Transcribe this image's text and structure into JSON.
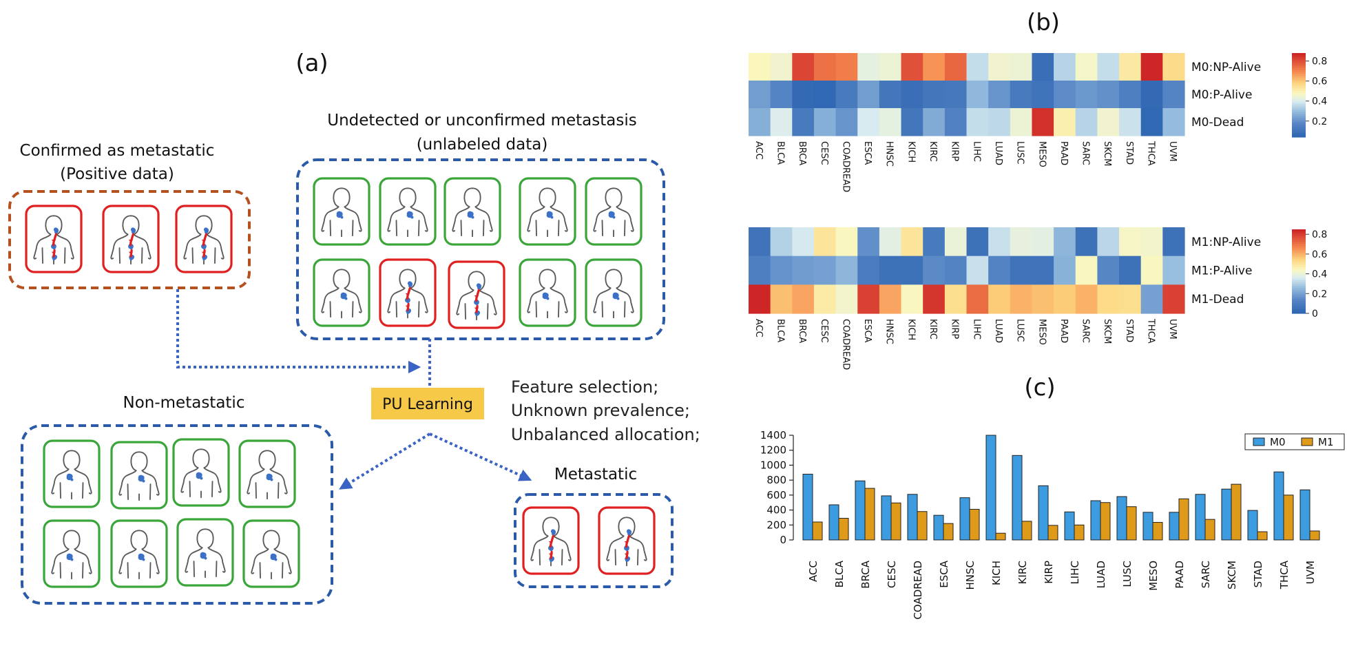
{
  "panel_a": {
    "label": "(a)",
    "positive_group": {
      "title_line1": "Confirmed as metastatic",
      "title_line2": "(Positive data)"
    },
    "unlabeled_group": {
      "title_line1": "Undetected or unconfirmed metastasis",
      "title_line2": "(unlabeled data)"
    },
    "pu_learning_label": "PU Learning",
    "notes": [
      "Feature selection;",
      "Unknown prevalence;",
      "Unbalanced allocation;"
    ],
    "non_metastatic_group": {
      "title": "Non-metastatic"
    },
    "metastatic_group": {
      "title": "Metastatic"
    },
    "colors": {
      "positive_box": "#b5501f",
      "group_box": "#2a5aa8",
      "metastatic_frame": "#e02020",
      "non_metastatic_frame": "#3aa63a",
      "arrow": "#3a63c4",
      "pu_box": "#f7c948"
    },
    "icons": {
      "body": "human-body-icon",
      "tumor": "tumor-spread-icon"
    }
  },
  "panel_b": {
    "label": "(b)"
  },
  "panel_c": {
    "label": "(c)"
  },
  "chart_data": [
    {
      "type": "heatmap",
      "name": "M0",
      "columns": [
        "ACC",
        "BLCA",
        "BRCA",
        "CESC",
        "COADREAD",
        "ESCA",
        "HNSC",
        "KICH",
        "KIRC",
        "KIRP",
        "LIHC",
        "LUAD",
        "LUSC",
        "MESO",
        "PAAD",
        "SARC",
        "SKCM",
        "STAD",
        "THCA",
        "UVM"
      ],
      "rows": [
        "M0:NP-Alive",
        "M0:P-Alive",
        "M0-Dead"
      ],
      "values": [
        [
          0.48,
          0.45,
          0.82,
          0.74,
          0.72,
          0.42,
          0.44,
          0.8,
          0.68,
          0.76,
          0.36,
          0.45,
          0.44,
          0.07,
          0.34,
          0.46,
          0.36,
          0.52,
          0.9,
          0.56
        ],
        [
          0.22,
          0.16,
          0.05,
          0.04,
          0.12,
          0.22,
          0.1,
          0.07,
          0.1,
          0.11,
          0.28,
          0.2,
          0.12,
          0.09,
          0.18,
          0.21,
          0.19,
          0.14,
          0.05,
          0.16
        ],
        [
          0.26,
          0.4,
          0.12,
          0.26,
          0.2,
          0.39,
          0.42,
          0.1,
          0.25,
          0.15,
          0.36,
          0.35,
          0.44,
          0.86,
          0.5,
          0.34,
          0.45,
          0.37,
          0.04,
          0.29
        ]
      ],
      "colorbar_ticks": [
        "0.2",
        "0.4",
        "0.6",
        "0.8"
      ],
      "colorbar_range": [
        0.04,
        0.88
      ]
    },
    {
      "type": "heatmap",
      "name": "M1",
      "columns": [
        "ACC",
        "BLCA",
        "BRCA",
        "CESC",
        "COADREAD",
        "ESCA",
        "HNSC",
        "KICH",
        "KIRC",
        "KIRP",
        "LIHC",
        "LUAD",
        "LUSC",
        "MESO",
        "PAAD",
        "SARC",
        "SKCM",
        "STAD",
        "THCA",
        "UVM"
      ],
      "rows": [
        "M1:NP-Alive",
        "M1:P-Alive",
        "M1-Dead"
      ],
      "values": [
        [
          0.05,
          0.3,
          0.35,
          0.5,
          0.44,
          0.15,
          0.38,
          0.5,
          0.08,
          0.4,
          0.04,
          0.33,
          0.39,
          0.38,
          0.24,
          0.04,
          0.31,
          0.43,
          0.42,
          0.04
        ],
        [
          0.1,
          0.16,
          0.18,
          0.19,
          0.24,
          0.09,
          0.04,
          0.04,
          0.14,
          0.12,
          0.33,
          0.12,
          0.05,
          0.05,
          0.23,
          0.44,
          0.13,
          0.04,
          0.44,
          0.26
        ],
        [
          0.85,
          0.58,
          0.62,
          0.48,
          0.42,
          0.8,
          0.62,
          0.44,
          0.82,
          0.52,
          0.72,
          0.56,
          0.6,
          0.58,
          0.56,
          0.6,
          0.53,
          0.52,
          0.19,
          0.8
        ]
      ],
      "colorbar_ticks": [
        "0",
        "0.2",
        "0.4",
        "0.6",
        "0.8"
      ],
      "colorbar_range": [
        0,
        0.85
      ]
    },
    {
      "type": "bar",
      "categories": [
        "ACC",
        "BLCA",
        "BRCA",
        "CESC",
        "COADREAD",
        "ESCA",
        "HNSC",
        "KICH",
        "KIRC",
        "KIRP",
        "LIHC",
        "LUAD",
        "LUSC",
        "MESO",
        "PAAD",
        "SARC",
        "SKCM",
        "STAD",
        "THCA",
        "UVM"
      ],
      "series": [
        {
          "name": "M0",
          "color": "#3d9be0",
          "values": [
            880,
            470,
            790,
            590,
            610,
            330,
            565,
            1400,
            1130,
            725,
            375,
            525,
            580,
            370,
            370,
            610,
            680,
            395,
            910,
            670
          ]
        },
        {
          "name": "M1",
          "color": "#e09a1a",
          "values": [
            240,
            290,
            690,
            495,
            380,
            220,
            410,
            90,
            250,
            195,
            200,
            500,
            445,
            235,
            550,
            275,
            745,
            110,
            600,
            120
          ]
        }
      ],
      "y_ticks": [
        "0",
        "200",
        "400",
        "600",
        "800",
        "1000",
        "1200",
        "1400"
      ],
      "ylim": [
        0,
        1400
      ],
      "legend_position": "top-right"
    }
  ]
}
